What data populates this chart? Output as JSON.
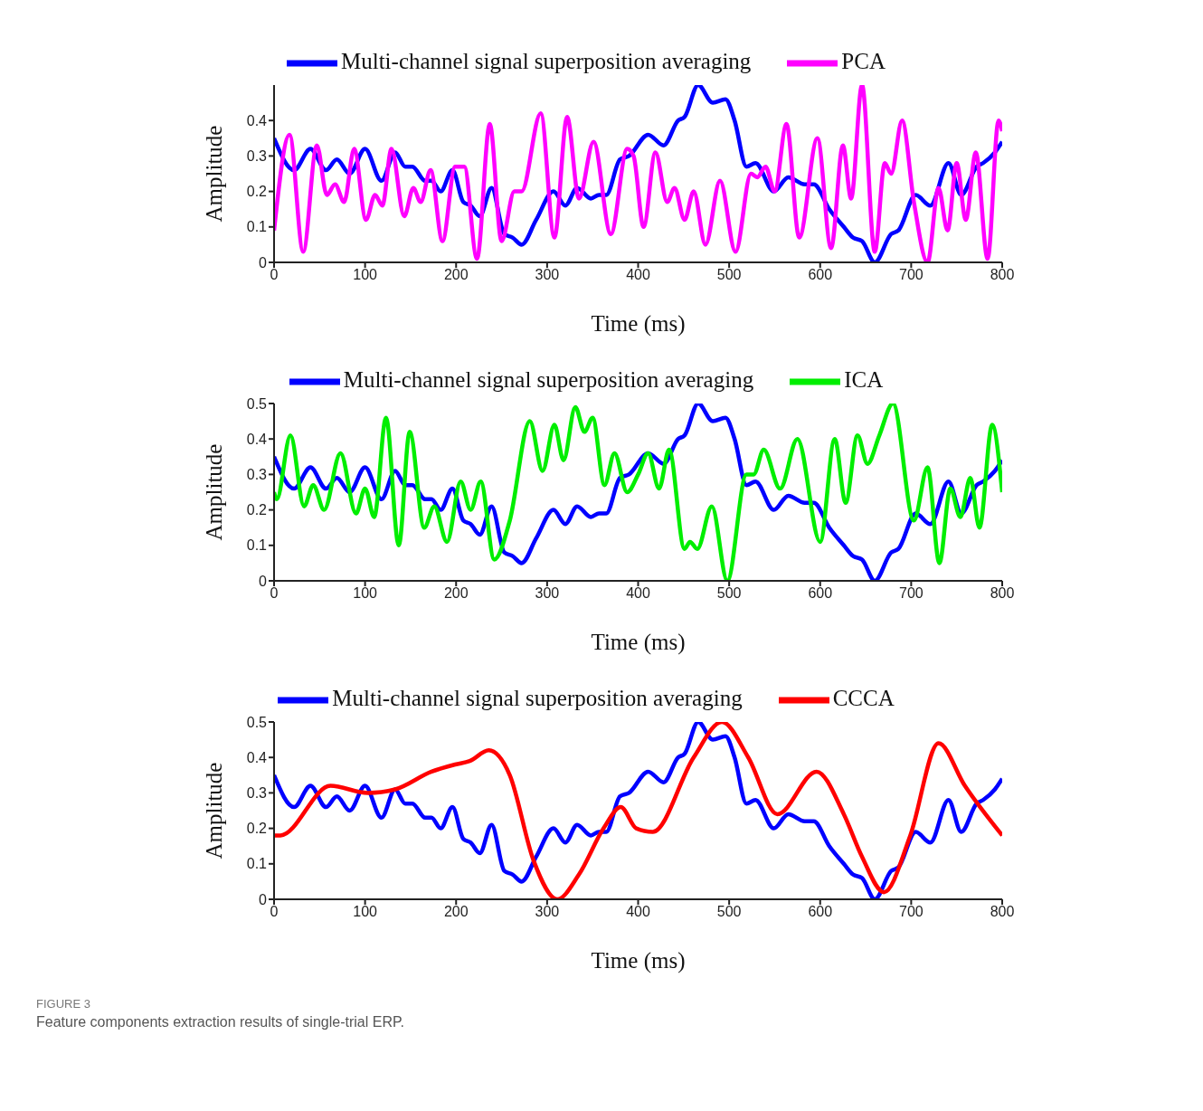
{
  "chart_data": [
    {
      "type": "line",
      "xlabel": "Time (ms)",
      "ylabel": "Amplitude",
      "xlim": [
        0,
        800
      ],
      "xticks": [
        0,
        100,
        200,
        300,
        400,
        500,
        600,
        700,
        800
      ],
      "ylim": [
        0,
        0.5
      ],
      "yticks": [
        0,
        0.1,
        0.2,
        0.3,
        0.4
      ],
      "grid": false,
      "legend": "top",
      "marker": "none",
      "line_style": "solid",
      "series": [
        {
          "name": "Multi-channel signal superposition averaging",
          "color": "#0000ff",
          "x": [
            0,
            22,
            40,
            57,
            69,
            83,
            100,
            118,
            133,
            144,
            152,
            166,
            173,
            183,
            196,
            208,
            216,
            226,
            239,
            253,
            262,
            272,
            288,
            307,
            320,
            333,
            348,
            357,
            365,
            380,
            390,
            411,
            428,
            444,
            451,
            466,
            482,
            496,
            506,
            519,
            529,
            549,
            565,
            583,
            593,
            610,
            626,
            636,
            646,
            660,
            678,
            686,
            705,
            721,
            741,
            755,
            772,
            779,
            792,
            800
          ],
          "values": [
            0.35,
            0.26,
            0.32,
            0.26,
            0.29,
            0.25,
            0.32,
            0.23,
            0.31,
            0.27,
            0.27,
            0.23,
            0.23,
            0.2,
            0.26,
            0.17,
            0.16,
            0.13,
            0.21,
            0.08,
            0.07,
            0.05,
            0.12,
            0.2,
            0.16,
            0.21,
            0.18,
            0.19,
            0.19,
            0.29,
            0.3,
            0.36,
            0.33,
            0.4,
            0.41,
            0.5,
            0.45,
            0.46,
            0.4,
            0.27,
            0.28,
            0.2,
            0.24,
            0.22,
            0.22,
            0.15,
            0.1,
            0.07,
            0.06,
            0,
            0.08,
            0.09,
            0.19,
            0.16,
            0.28,
            0.19,
            0.27,
            0.28,
            0.31,
            0.34
          ]
        },
        {
          "name": "PCA",
          "color": "#ff00ff",
          "x": [
            0,
            17,
            32,
            47,
            58,
            67,
            77,
            88,
            101,
            111,
            119,
            129,
            143,
            153,
            161,
            172,
            185,
            199,
            209,
            223,
            237,
            250,
            264,
            272,
            293,
            308,
            322,
            335,
            351,
            370,
            388,
            395,
            406,
            419,
            432,
            440,
            451,
            461,
            474,
            490,
            507,
            524,
            531,
            540,
            550,
            563,
            577,
            597,
            612,
            625,
            634,
            646,
            660,
            671,
            678,
            690,
            703,
            718,
            730,
            740,
            750,
            760,
            771,
            784,
            796,
            800
          ],
          "values": [
            0.09,
            0.36,
            0.03,
            0.33,
            0.19,
            0.22,
            0.17,
            0.32,
            0.12,
            0.19,
            0.16,
            0.32,
            0.13,
            0.21,
            0.17,
            0.26,
            0.06,
            0.27,
            0.27,
            0.01,
            0.39,
            0.06,
            0.2,
            0.2,
            0.42,
            0.07,
            0.41,
            0.18,
            0.34,
            0.08,
            0.32,
            0.3,
            0.1,
            0.31,
            0.17,
            0.21,
            0.12,
            0.2,
            0.05,
            0.23,
            0.03,
            0.25,
            0.24,
            0.27,
            0.2,
            0.39,
            0.07,
            0.35,
            0.04,
            0.33,
            0.18,
            0.5,
            0.03,
            0.28,
            0.25,
            0.4,
            0.17,
            0,
            0.21,
            0.09,
            0.28,
            0.12,
            0.31,
            0.01,
            0.4,
            0.37
          ]
        }
      ]
    },
    {
      "type": "line",
      "xlabel": "Time (ms)",
      "ylabel": "Amplitude",
      "xlim": [
        0,
        800
      ],
      "xticks": [
        0,
        100,
        200,
        300,
        400,
        500,
        600,
        700,
        800
      ],
      "ylim": [
        0,
        0.5
      ],
      "yticks": [
        0,
        0.1,
        0.2,
        0.3,
        0.4,
        0.5
      ],
      "grid": false,
      "legend": "top",
      "marker": "none",
      "line_style": "solid",
      "series": [
        {
          "name": "Multi-channel signal superposition averaging",
          "color": "#0000ff",
          "x": [
            0,
            22,
            40,
            57,
            69,
            83,
            100,
            118,
            133,
            144,
            152,
            166,
            173,
            183,
            196,
            208,
            216,
            226,
            239,
            253,
            262,
            272,
            288,
            307,
            320,
            333,
            348,
            357,
            365,
            380,
            390,
            411,
            428,
            444,
            451,
            466,
            482,
            496,
            506,
            519,
            529,
            549,
            565,
            583,
            593,
            610,
            626,
            636,
            646,
            660,
            678,
            686,
            705,
            721,
            741,
            755,
            772,
            779,
            792,
            800
          ],
          "values": [
            0.35,
            0.26,
            0.32,
            0.26,
            0.29,
            0.25,
            0.32,
            0.23,
            0.31,
            0.27,
            0.27,
            0.23,
            0.23,
            0.2,
            0.26,
            0.17,
            0.16,
            0.13,
            0.21,
            0.08,
            0.07,
            0.05,
            0.12,
            0.2,
            0.16,
            0.21,
            0.18,
            0.19,
            0.19,
            0.29,
            0.3,
            0.36,
            0.33,
            0.4,
            0.41,
            0.5,
            0.45,
            0.46,
            0.4,
            0.27,
            0.28,
            0.2,
            0.24,
            0.22,
            0.22,
            0.15,
            0.1,
            0.07,
            0.06,
            0,
            0.08,
            0.09,
            0.19,
            0.16,
            0.28,
            0.19,
            0.27,
            0.28,
            0.31,
            0.34
          ]
        },
        {
          "name": "ICA",
          "color": "#00ee00",
          "x": [
            0,
            3,
            18,
            33,
            43,
            55,
            73,
            90,
            100,
            110,
            123,
            137,
            149,
            165,
            176,
            190,
            205,
            216,
            227,
            242,
            259,
            281,
            295,
            308,
            318,
            331,
            341,
            350,
            363,
            374,
            388,
            400,
            411,
            423,
            434,
            451,
            457,
            465,
            481,
            498,
            519,
            527,
            538,
            556,
            575,
            600,
            616,
            628,
            641,
            652,
            665,
            680,
            703,
            718,
            731,
            743,
            754,
            765,
            775,
            789,
            800
          ],
          "values": [
            0.25,
            0.23,
            0.41,
            0.21,
            0.27,
            0.2,
            0.36,
            0.19,
            0.26,
            0.18,
            0.46,
            0.1,
            0.42,
            0.15,
            0.21,
            0.11,
            0.28,
            0.2,
            0.28,
            0.06,
            0.17,
            0.45,
            0.31,
            0.44,
            0.34,
            0.49,
            0.42,
            0.46,
            0.27,
            0.36,
            0.25,
            0.3,
            0.36,
            0.26,
            0.37,
            0.09,
            0.11,
            0.09,
            0.21,
            0,
            0.3,
            0.3,
            0.37,
            0.26,
            0.4,
            0.11,
            0.4,
            0.22,
            0.41,
            0.33,
            0.41,
            0.5,
            0.17,
            0.32,
            0.05,
            0.26,
            0.18,
            0.29,
            0.15,
            0.44,
            0.25
          ]
        }
      ]
    },
    {
      "type": "line",
      "xlabel": "Time (ms)",
      "ylabel": "Amplitude",
      "xlim": [
        0,
        800
      ],
      "xticks": [
        0,
        100,
        200,
        300,
        400,
        500,
        600,
        700,
        800
      ],
      "ylim": [
        0,
        0.5
      ],
      "yticks": [
        0,
        0.1,
        0.2,
        0.3,
        0.4,
        0.5
      ],
      "grid": false,
      "legend": "top",
      "marker": "none",
      "line_style": "solid",
      "annotations": [
        "FIGURE 3",
        "Feature components extraction results of single-trial ERP."
      ],
      "series": [
        {
          "name": "Multi-channel signal superposition averaging",
          "color": "#0000ff",
          "x": [
            0,
            22,
            40,
            57,
            69,
            83,
            100,
            118,
            133,
            144,
            152,
            166,
            173,
            183,
            196,
            208,
            216,
            226,
            239,
            253,
            262,
            272,
            288,
            307,
            320,
            333,
            348,
            357,
            365,
            380,
            390,
            411,
            428,
            444,
            451,
            466,
            482,
            496,
            506,
            519,
            529,
            549,
            565,
            583,
            593,
            610,
            626,
            636,
            646,
            660,
            678,
            686,
            705,
            721,
            741,
            755,
            772,
            779,
            792,
            800
          ],
          "values": [
            0.35,
            0.26,
            0.32,
            0.26,
            0.29,
            0.25,
            0.32,
            0.23,
            0.31,
            0.27,
            0.27,
            0.23,
            0.23,
            0.2,
            0.26,
            0.17,
            0.16,
            0.13,
            0.21,
            0.08,
            0.07,
            0.05,
            0.12,
            0.2,
            0.16,
            0.21,
            0.18,
            0.19,
            0.19,
            0.29,
            0.3,
            0.36,
            0.33,
            0.4,
            0.41,
            0.5,
            0.45,
            0.46,
            0.4,
            0.27,
            0.28,
            0.2,
            0.24,
            0.22,
            0.22,
            0.15,
            0.1,
            0.07,
            0.06,
            0,
            0.08,
            0.09,
            0.19,
            0.16,
            0.28,
            0.19,
            0.27,
            0.28,
            0.31,
            0.34
          ]
        },
        {
          "name": "CCCA",
          "color": "#ff0000",
          "x": [
            0,
            7,
            62,
            103,
            133,
            173,
            199,
            215,
            236,
            259,
            285,
            311,
            335,
            362,
            381,
            398,
            416,
            461,
            492,
            521,
            553,
            596,
            626,
            646,
            670,
            699,
            730,
            759,
            800
          ],
          "values": [
            0.18,
            0.18,
            0.32,
            0.3,
            0.31,
            0.36,
            0.38,
            0.39,
            0.42,
            0.35,
            0.11,
            0,
            0.07,
            0.2,
            0.26,
            0.2,
            0.19,
            0.4,
            0.5,
            0.4,
            0.24,
            0.36,
            0.24,
            0.12,
            0.02,
            0.18,
            0.44,
            0.32,
            0.18
          ]
        }
      ]
    }
  ]
}
